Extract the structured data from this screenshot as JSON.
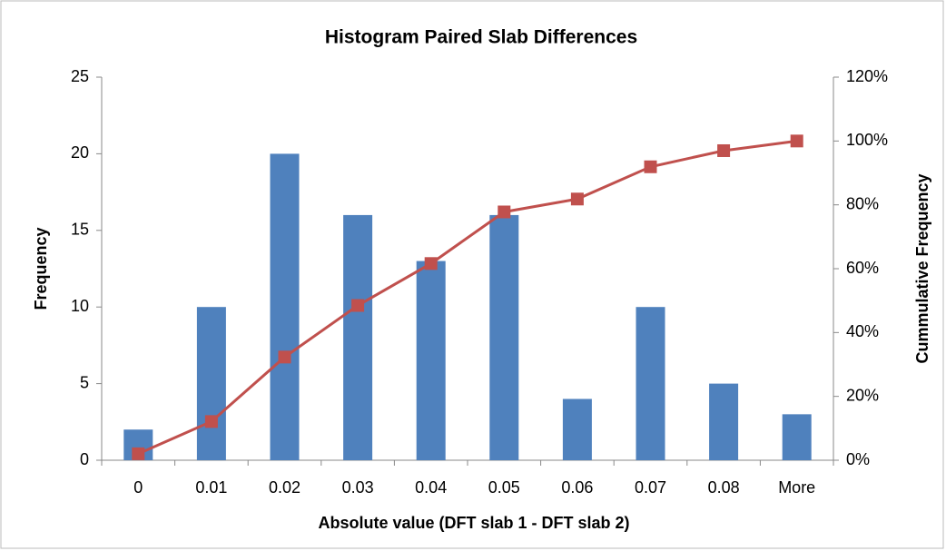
{
  "chart_data": {
    "type": "bar_line",
    "title": "Histogram Paired Slab Differences",
    "x_label": "Absolute value (DFT slab 1 - DFT slab 2)",
    "y_label": "Frequency",
    "y2_label": "Cummulative Frequency",
    "categories": [
      "0",
      "0.01",
      "0.02",
      "0.03",
      "0.04",
      "0.05",
      "0.06",
      "0.07",
      "0.08",
      "More"
    ],
    "series": [
      {
        "name": "Frequency",
        "type": "bar",
        "color": "#4f81bd",
        "values": [
          2,
          10,
          20,
          16,
          13,
          16,
          4,
          10,
          5,
          3
        ]
      },
      {
        "name": "Cumulative %",
        "type": "line",
        "axis": "y2",
        "color": "#c0504d",
        "values": [
          2.02,
          12.12,
          32.32,
          48.48,
          61.62,
          77.78,
          81.82,
          91.92,
          96.97,
          100
        ]
      }
    ],
    "ylim": [
      0,
      25
    ],
    "yticks": [
      0,
      5,
      10,
      15,
      20,
      25
    ],
    "y2lim": [
      0,
      120
    ],
    "y2ticks": [
      {
        "value": 0,
        "label": "0%"
      },
      {
        "value": 20,
        "label": "20%"
      },
      {
        "value": 40,
        "label": "40%"
      },
      {
        "value": 60,
        "label": "60%"
      },
      {
        "value": 80,
        "label": "80%"
      },
      {
        "value": 100,
        "label": "100%"
      },
      {
        "value": 120,
        "label": "120%"
      }
    ],
    "grid": false,
    "legend": false
  }
}
